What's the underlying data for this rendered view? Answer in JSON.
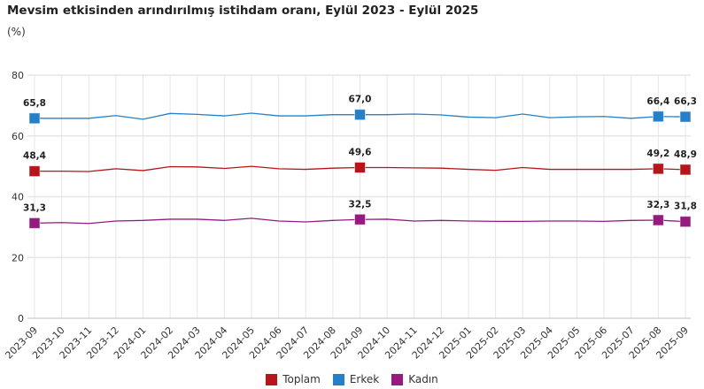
{
  "title": "Mevsim etkisinden arındırılmış istihdam oranı, Eylül 2023 - Eylül 2025",
  "subtitle": "(%)",
  "chart_data": {
    "type": "line",
    "title": "Mevsim etkisinden arındırılmış istihdam oranı, Eylül 2023 - Eylül 2025",
    "ylabel": "(%)",
    "ylim": [
      0,
      80
    ],
    "yticks": [
      0,
      20,
      40,
      60,
      80
    ],
    "grid": true,
    "legend_position": "bottom",
    "categories": [
      "2023-09",
      "2023-10",
      "2023-11",
      "2023-12",
      "2024-01",
      "2024-02",
      "2024-03",
      "2024-04",
      "2024-05",
      "2024-06",
      "2024-07",
      "2024-08",
      "2024-09",
      "2024-10",
      "2024-11",
      "2024-12",
      "2025-01",
      "2025-02",
      "2025-03",
      "2025-04",
      "2025-05",
      "2025-06",
      "2025-07",
      "2025-08",
      "2025-09"
    ],
    "labeled_indices": [
      0,
      12,
      23,
      24
    ],
    "series": [
      {
        "name": "Toplam",
        "color": "#b5161b",
        "values": [
          48.4,
          48.4,
          48.3,
          49.2,
          48.6,
          49.9,
          49.8,
          49.3,
          50.0,
          49.2,
          49.0,
          49.4,
          49.6,
          49.6,
          49.5,
          49.4,
          49.0,
          48.7,
          49.6,
          49.0,
          49.0,
          49.0,
          49.0,
          49.2,
          48.9
        ],
        "labels": [
          "48,4",
          "49,6",
          "49,2",
          "48,9"
        ]
      },
      {
        "name": "Erkek",
        "color": "#2580c8",
        "values": [
          65.8,
          65.8,
          65.8,
          66.7,
          65.5,
          67.4,
          67.1,
          66.6,
          67.5,
          66.6,
          66.6,
          67.0,
          67.0,
          67.0,
          67.2,
          66.9,
          66.2,
          66.0,
          67.2,
          66.0,
          66.3,
          66.4,
          65.8,
          66.4,
          66.3
        ],
        "labels": [
          "65,8",
          "67,0",
          "66,4",
          "66,3"
        ]
      },
      {
        "name": "Kadın",
        "color": "#951b81",
        "values": [
          31.3,
          31.5,
          31.2,
          32.0,
          32.2,
          32.6,
          32.6,
          32.2,
          32.9,
          32.0,
          31.7,
          32.2,
          32.5,
          32.6,
          32.0,
          32.2,
          32.0,
          31.9,
          31.9,
          32.0,
          32.0,
          31.9,
          32.2,
          32.3,
          31.8
        ],
        "labels": [
          "31,3",
          "32,5",
          "32,3",
          "31,8"
        ]
      }
    ]
  }
}
